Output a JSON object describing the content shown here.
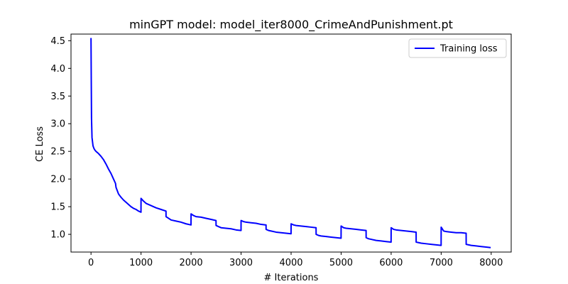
{
  "chart_data": {
    "type": "line",
    "title": "minGPT model: model_iter8000_CrimeAndPunishment.pt",
    "xlabel": "# Iterations",
    "ylabel": "CE Loss",
    "xlim": [
      -400,
      8400
    ],
    "ylim": [
      0.68,
      4.62
    ],
    "xticks": [
      0,
      1000,
      2000,
      3000,
      4000,
      5000,
      6000,
      7000,
      8000
    ],
    "yticks": [
      1.0,
      1.5,
      2.0,
      2.5,
      3.0,
      3.5,
      4.0,
      4.5
    ],
    "xtick_labels": [
      "0",
      "1000",
      "2000",
      "3000",
      "4000",
      "5000",
      "6000",
      "7000",
      "8000"
    ],
    "ytick_labels": [
      "1.0",
      "1.5",
      "2.0",
      "2.5",
      "3.0",
      "3.5",
      "4.0",
      "4.5"
    ],
    "grid": false,
    "legend_position": "top-right",
    "series": [
      {
        "name": "Training loss",
        "color": "#0000ff",
        "x": [
          0,
          5,
          10,
          20,
          40,
          60,
          80,
          100,
          150,
          200,
          250,
          300,
          350,
          400,
          450,
          490,
          500,
          550,
          600,
          650,
          700,
          750,
          800,
          850,
          900,
          950,
          999,
          1000,
          1050,
          1100,
          1200,
          1300,
          1400,
          1499,
          1500,
          1550,
          1600,
          1700,
          1800,
          1900,
          1999,
          2000,
          2050,
          2100,
          2200,
          2300,
          2400,
          2499,
          2500,
          2550,
          2600,
          2700,
          2800,
          2900,
          2999,
          3000,
          3050,
          3100,
          3200,
          3300,
          3400,
          3499,
          3500,
          3550,
          3600,
          3700,
          3800,
          3900,
          3999,
          4000,
          4050,
          4100,
          4200,
          4300,
          4400,
          4499,
          4500,
          4550,
          4600,
          4700,
          4800,
          4900,
          4999,
          5000,
          5050,
          5100,
          5200,
          5300,
          5400,
          5499,
          5500,
          5550,
          5600,
          5700,
          5800,
          5900,
          5999,
          6000,
          6050,
          6100,
          6200,
          6300,
          6400,
          6499,
          6500,
          6550,
          6600,
          6700,
          6800,
          6900,
          6999,
          7000,
          7050,
          7100,
          7200,
          7300,
          7400,
          7499,
          7500,
          7550,
          7600,
          7700,
          7800,
          7900,
          7990
        ],
        "y": [
          4.55,
          3.8,
          3.1,
          2.75,
          2.6,
          2.55,
          2.52,
          2.5,
          2.46,
          2.41,
          2.35,
          2.27,
          2.18,
          2.1,
          2.0,
          1.92,
          1.85,
          1.73,
          1.67,
          1.62,
          1.58,
          1.54,
          1.5,
          1.47,
          1.45,
          1.42,
          1.4,
          1.65,
          1.6,
          1.56,
          1.52,
          1.48,
          1.45,
          1.42,
          1.32,
          1.29,
          1.26,
          1.24,
          1.22,
          1.19,
          1.17,
          1.37,
          1.34,
          1.32,
          1.31,
          1.29,
          1.27,
          1.25,
          1.16,
          1.14,
          1.12,
          1.11,
          1.1,
          1.08,
          1.07,
          1.25,
          1.23,
          1.22,
          1.21,
          1.2,
          1.18,
          1.17,
          1.09,
          1.07,
          1.06,
          1.04,
          1.03,
          1.02,
          1.01,
          1.19,
          1.17,
          1.16,
          1.15,
          1.14,
          1.13,
          1.12,
          1.0,
          0.98,
          0.97,
          0.96,
          0.95,
          0.94,
          0.93,
          1.15,
          1.12,
          1.11,
          1.1,
          1.09,
          1.08,
          1.07,
          0.94,
          0.92,
          0.91,
          0.89,
          0.88,
          0.87,
          0.86,
          1.12,
          1.09,
          1.08,
          1.07,
          1.06,
          1.05,
          1.04,
          0.86,
          0.85,
          0.84,
          0.83,
          0.82,
          0.81,
          0.8,
          1.13,
          1.06,
          1.05,
          1.04,
          1.03,
          1.03,
          1.02,
          0.82,
          0.81,
          0.8,
          0.79,
          0.78,
          0.77,
          0.76
        ]
      }
    ]
  }
}
